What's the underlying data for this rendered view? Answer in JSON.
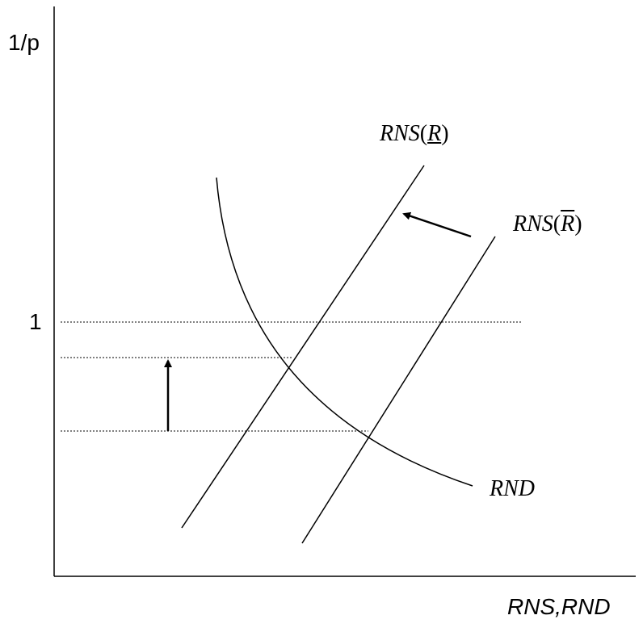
{
  "axes": {
    "y_label": "1/p",
    "x_label": "RNS,RND",
    "y_tick": "1"
  },
  "curves": {
    "rns_low": {
      "name": "RNS",
      "arg": "R"
    },
    "rns_high": {
      "name": "RNS",
      "arg": "R"
    },
    "rnd": {
      "name": "RND"
    }
  },
  "arrows": [
    {
      "name": "supply-shift-arrow",
      "direction": "left-up"
    },
    {
      "name": "price-change-arrow",
      "direction": "up"
    }
  ]
}
